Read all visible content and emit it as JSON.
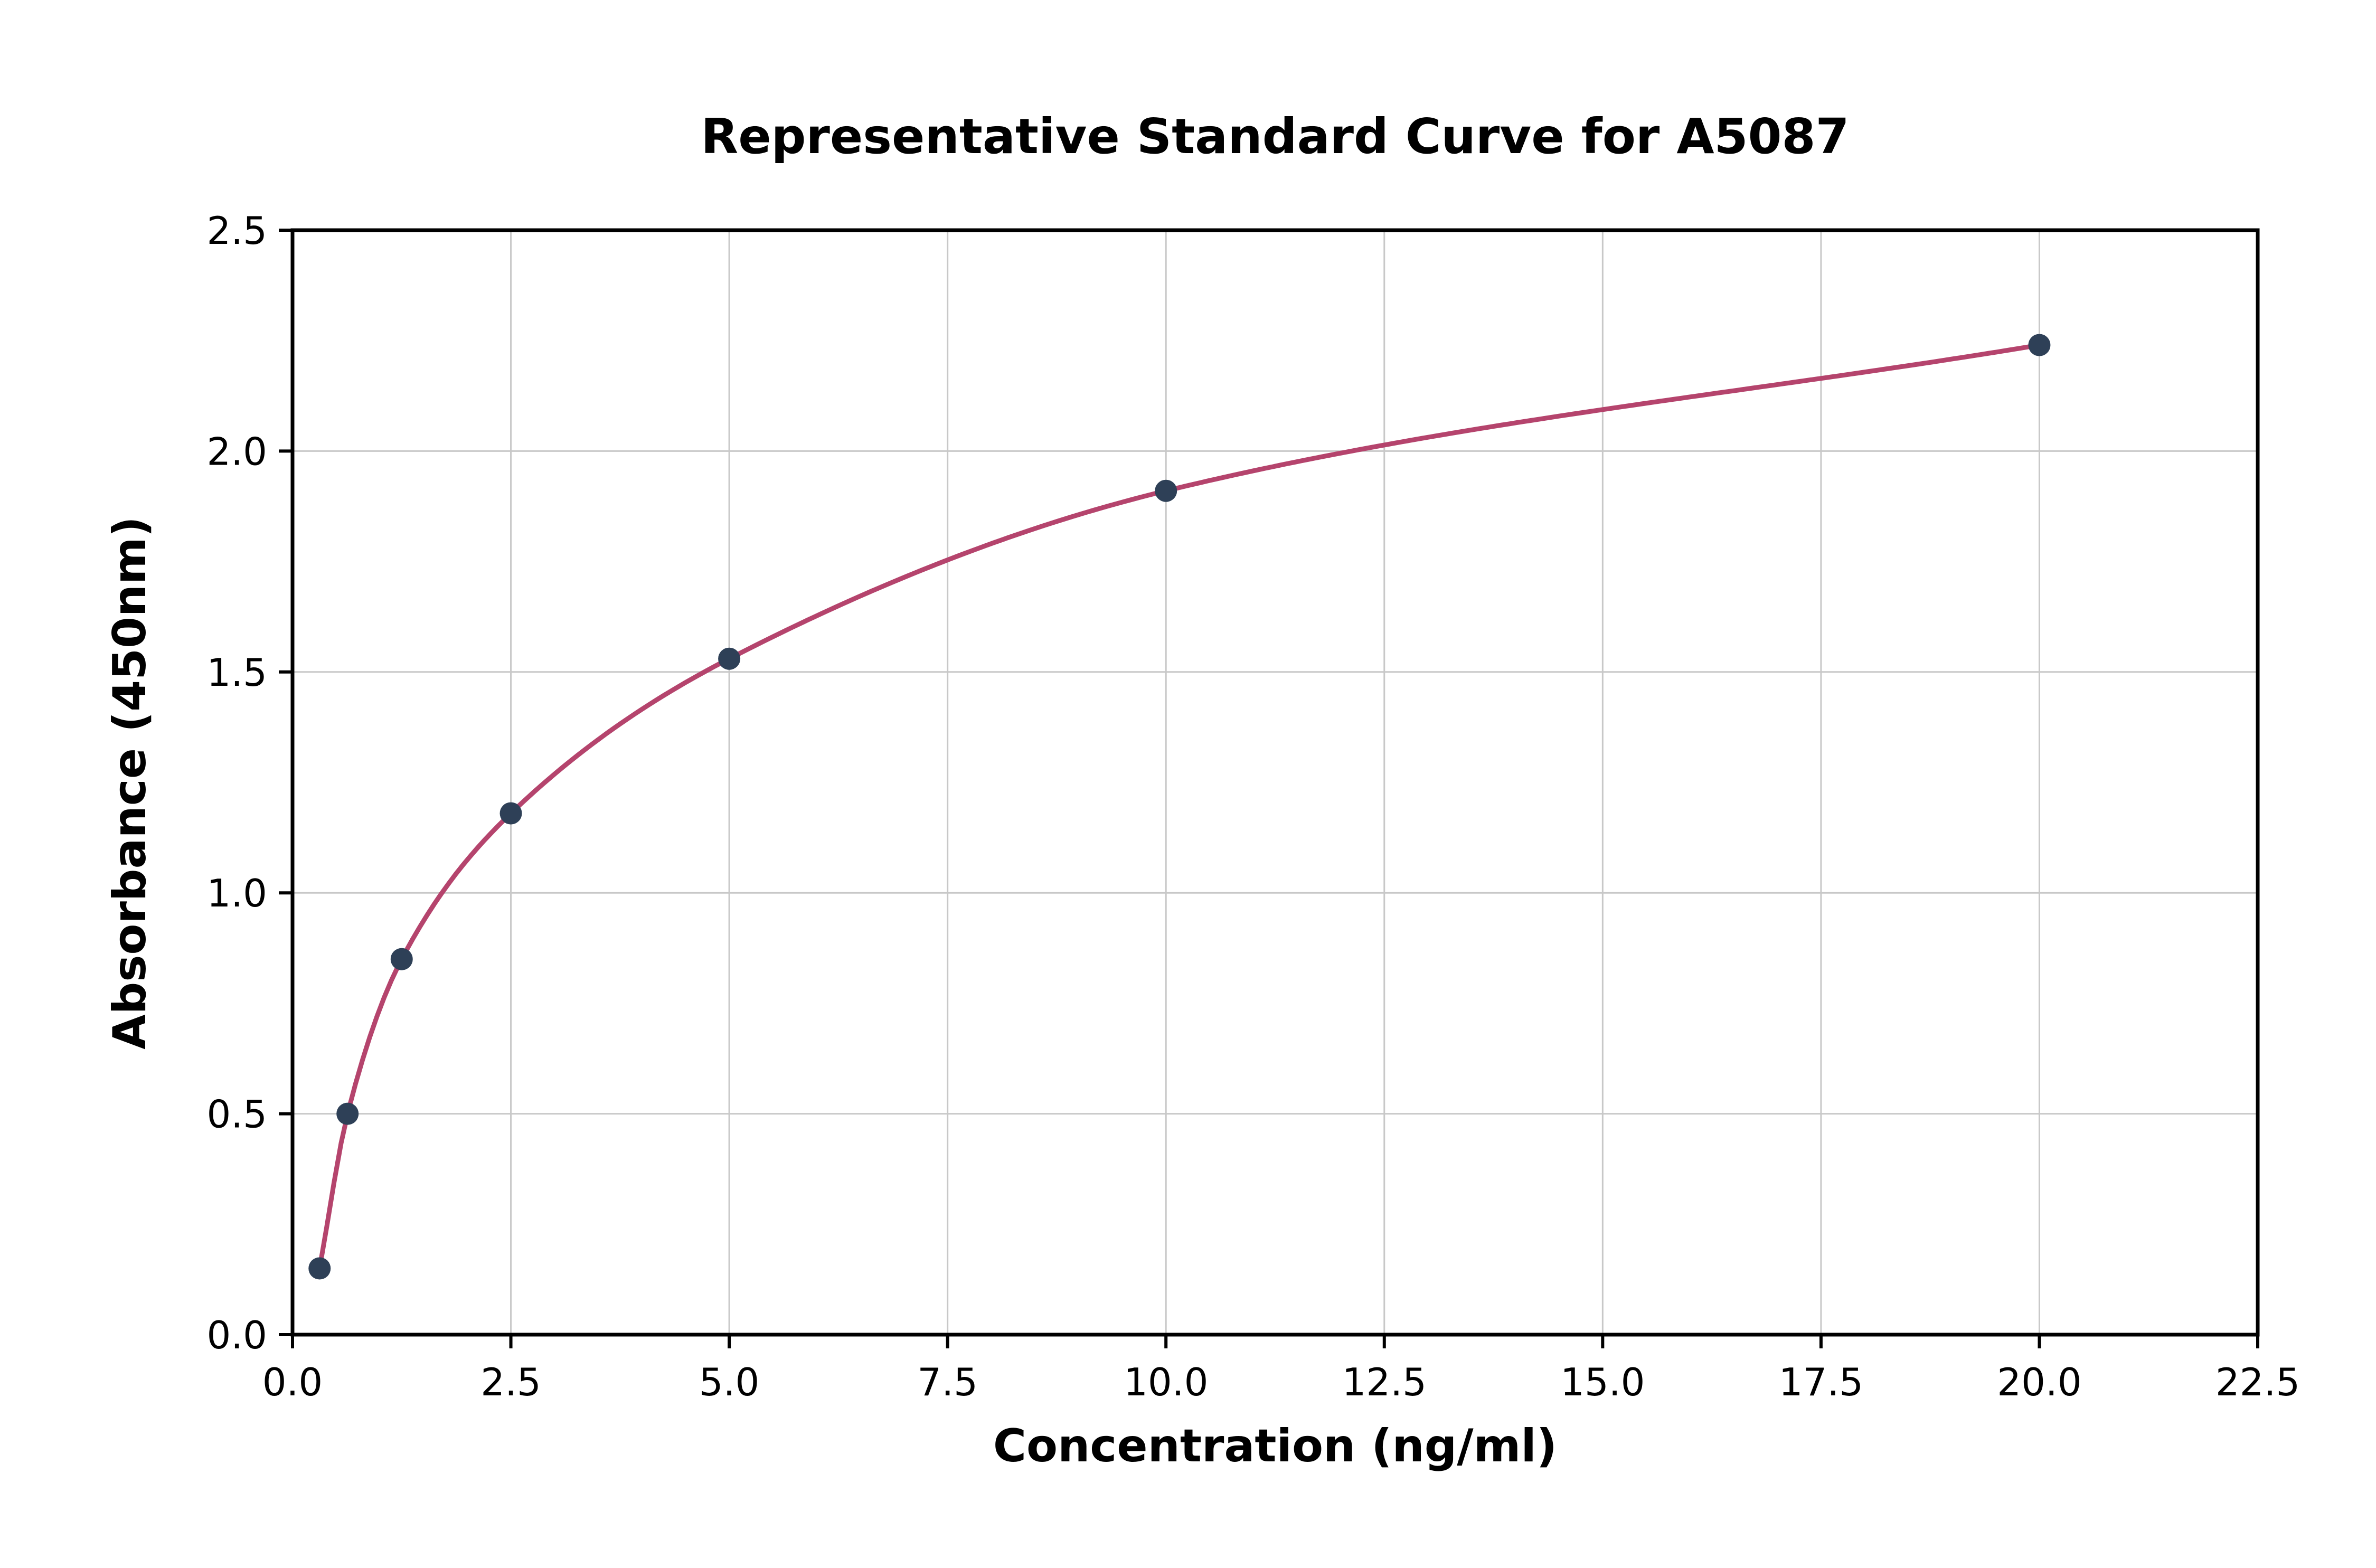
{
  "chart_data": {
    "type": "scatter",
    "title": "Representative Standard Curve for A5087",
    "xlabel": "Concentration (ng/ml)",
    "ylabel": "Absorbance (450nm)",
    "x": [
      0.31,
      0.63,
      1.25,
      2.5,
      5.0,
      10.0,
      20.0
    ],
    "y": [
      0.15,
      0.5,
      0.85,
      1.18,
      1.53,
      1.91,
      2.24
    ],
    "fit_curve": true,
    "xlim": [
      0,
      22.5
    ],
    "ylim": [
      0,
      2.5
    ],
    "xticks": [
      0,
      2.5,
      5,
      7.5,
      10,
      12.5,
      15,
      17.5,
      20,
      22.5
    ],
    "xtick_labels": [
      "0.0",
      "2.5",
      "5.0",
      "7.5",
      "10.0",
      "12.5",
      "15.0",
      "17.5",
      "20.0",
      "22.5"
    ],
    "yticks": [
      0,
      0.5,
      1,
      1.5,
      2,
      2.5
    ],
    "ytick_labels": [
      "0.0",
      "0.5",
      "1.0",
      "1.5",
      "2.0",
      "2.5"
    ],
    "grid": true,
    "legend": "none",
    "colors": {
      "curve": "#b5446d",
      "points": "#2e4057",
      "grid": "#c8c8c8",
      "axis": "#000000",
      "background": "#ffffff"
    }
  }
}
